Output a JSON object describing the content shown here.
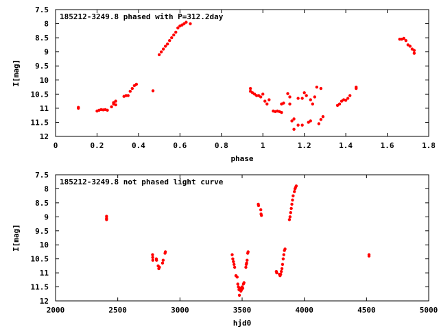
{
  "chart_data": [
    {
      "type": "scatter",
      "title": "185212-3249.8 phased with P=312.2day",
      "xlabel": "phase",
      "ylabel": "I[mag]",
      "xlim": [
        0,
        1.8
      ],
      "ylim": [
        7.5,
        12
      ],
      "y_inverted": true,
      "grid": false,
      "xticks": [
        0,
        0.2,
        0.4,
        0.6,
        0.8,
        1,
        1.2,
        1.4,
        1.6,
        1.8
      ],
      "xtick_labels": [
        "0",
        "0.2",
        "0.4",
        "0.6",
        "0.8",
        "1",
        "1.2",
        "1.4",
        "1.6",
        "1.8"
      ],
      "yticks": [
        7.5,
        8,
        8.5,
        9,
        9.5,
        10,
        10.5,
        11,
        11.5,
        12
      ],
      "ytick_labels": [
        "7.5",
        "8",
        "8.5",
        "9",
        "9.5",
        "10",
        "10.5",
        "11",
        "11.5",
        "12"
      ],
      "marker_color": "#ff0000",
      "series": [
        {
          "points": [
            [
              0.11,
              10.97
            ],
            [
              0.11,
              11.0
            ],
            [
              0.2,
              11.1
            ],
            [
              0.21,
              11.07
            ],
            [
              0.22,
              11.05
            ],
            [
              0.23,
              11.06
            ],
            [
              0.24,
              11.05
            ],
            [
              0.25,
              11.07
            ],
            [
              0.27,
              10.95
            ],
            [
              0.28,
              10.85
            ],
            [
              0.28,
              10.8
            ],
            [
              0.29,
              10.75
            ],
            [
              0.29,
              10.88
            ],
            [
              0.33,
              10.58
            ],
            [
              0.34,
              10.55
            ],
            [
              0.35,
              10.55
            ],
            [
              0.36,
              10.4
            ],
            [
              0.37,
              10.3
            ],
            [
              0.38,
              10.2
            ],
            [
              0.39,
              10.15
            ],
            [
              0.47,
              10.38
            ],
            [
              0.5,
              9.1
            ],
            [
              0.51,
              9.0
            ],
            [
              0.52,
              8.9
            ],
            [
              0.53,
              8.8
            ],
            [
              0.54,
              8.72
            ],
            [
              0.55,
              8.6
            ],
            [
              0.56,
              8.5
            ],
            [
              0.57,
              8.4
            ],
            [
              0.58,
              8.3
            ],
            [
              0.59,
              8.15
            ],
            [
              0.6,
              8.08
            ],
            [
              0.61,
              8.05
            ],
            [
              0.62,
              8.0
            ],
            [
              0.63,
              7.95
            ],
            [
              0.65,
              8.0
            ],
            [
              0.94,
              10.3
            ],
            [
              0.94,
              10.4
            ],
            [
              0.95,
              10.45
            ],
            [
              0.96,
              10.5
            ],
            [
              0.97,
              10.55
            ],
            [
              0.98,
              10.55
            ],
            [
              0.99,
              10.6
            ],
            [
              1.0,
              10.5
            ],
            [
              1.01,
              10.75
            ],
            [
              1.02,
              10.85
            ],
            [
              1.03,
              10.7
            ],
            [
              1.05,
              11.1
            ],
            [
              1.06,
              11.12
            ],
            [
              1.07,
              11.1
            ],
            [
              1.08,
              11.12
            ],
            [
              1.09,
              11.15
            ],
            [
              1.09,
              10.85
            ],
            [
              1.1,
              10.82
            ],
            [
              1.12,
              10.48
            ],
            [
              1.13,
              10.6
            ],
            [
              1.13,
              10.85
            ],
            [
              1.14,
              11.45
            ],
            [
              1.15,
              11.38
            ],
            [
              1.15,
              11.75
            ],
            [
              1.17,
              11.6
            ],
            [
              1.17,
              10.65
            ],
            [
              1.19,
              10.65
            ],
            [
              1.19,
              11.6
            ],
            [
              1.2,
              10.45
            ],
            [
              1.21,
              10.55
            ],
            [
              1.22,
              11.5
            ],
            [
              1.23,
              11.45
            ],
            [
              1.23,
              10.7
            ],
            [
              1.24,
              10.85
            ],
            [
              1.25,
              10.6
            ],
            [
              1.26,
              10.25
            ],
            [
              1.27,
              11.55
            ],
            [
              1.28,
              11.4
            ],
            [
              1.28,
              10.3
            ],
            [
              1.29,
              11.3
            ],
            [
              1.36,
              10.9
            ],
            [
              1.37,
              10.85
            ],
            [
              1.38,
              10.75
            ],
            [
              1.39,
              10.7
            ],
            [
              1.4,
              10.72
            ],
            [
              1.41,
              10.65
            ],
            [
              1.42,
              10.55
            ],
            [
              1.45,
              10.25
            ],
            [
              1.45,
              10.3
            ],
            [
              1.66,
              8.55
            ],
            [
              1.67,
              8.55
            ],
            [
              1.68,
              8.52
            ],
            [
              1.69,
              8.6
            ],
            [
              1.7,
              8.75
            ],
            [
              1.71,
              8.8
            ],
            [
              1.72,
              8.9
            ],
            [
              1.73,
              8.95
            ],
            [
              1.73,
              9.05
            ]
          ]
        }
      ]
    },
    {
      "type": "scatter",
      "title": "185212-3249.8 not phased light curve",
      "xlabel": "hjd0",
      "ylabel": "I[mag]",
      "xlim": [
        2000,
        5000
      ],
      "ylim": [
        7.5,
        12
      ],
      "y_inverted": true,
      "grid": false,
      "xticks": [
        2000,
        2500,
        3000,
        3500,
        4000,
        4500,
        5000
      ],
      "xtick_labels": [
        "2000",
        "2500",
        "3000",
        "3500",
        "4000",
        "4500",
        "5000"
      ],
      "yticks": [
        7.5,
        8,
        8.5,
        9,
        9.5,
        10,
        10.5,
        11,
        11.5,
        12
      ],
      "ytick_labels": [
        "7.5",
        "8",
        "8.5",
        "9",
        "9.5",
        "10",
        "10.5",
        "11",
        "11.5",
        "12"
      ],
      "marker_color": "#ff0000",
      "series": [
        {
          "points": [
            [
              2410,
              8.98
            ],
            [
              2410,
              9.05
            ],
            [
              2410,
              9.1
            ],
            [
              2780,
              10.35
            ],
            [
              2781,
              10.45
            ],
            [
              2782,
              10.55
            ],
            [
              2810,
              10.5
            ],
            [
              2812,
              10.55
            ],
            [
              2825,
              10.75
            ],
            [
              2830,
              10.85
            ],
            [
              2835,
              10.8
            ],
            [
              2860,
              10.65
            ],
            [
              2865,
              10.55
            ],
            [
              2880,
              10.3
            ],
            [
              2883,
              10.25
            ],
            [
              3420,
              10.35
            ],
            [
              3425,
              10.5
            ],
            [
              3430,
              10.6
            ],
            [
              3435,
              10.7
            ],
            [
              3440,
              10.8
            ],
            [
              3450,
              11.1
            ],
            [
              3460,
              11.15
            ],
            [
              3465,
              11.4
            ],
            [
              3470,
              11.5
            ],
            [
              3475,
              11.6
            ],
            [
              3478,
              11.8
            ],
            [
              3485,
              11.55
            ],
            [
              3490,
              11.65
            ],
            [
              3495,
              11.6
            ],
            [
              3500,
              11.5
            ],
            [
              3505,
              11.55
            ],
            [
              3510,
              11.4
            ],
            [
              3515,
              11.35
            ],
            [
              3530,
              10.8
            ],
            [
              3533,
              10.7
            ],
            [
              3536,
              10.65
            ],
            [
              3540,
              10.55
            ],
            [
              3545,
              10.3
            ],
            [
              3548,
              10.25
            ],
            [
              3630,
              8.55
            ],
            [
              3632,
              8.6
            ],
            [
              3650,
              8.75
            ],
            [
              3652,
              8.9
            ],
            [
              3655,
              8.95
            ],
            [
              3775,
              10.95
            ],
            [
              3778,
              11.0
            ],
            [
              3800,
              11.05
            ],
            [
              3805,
              11.1
            ],
            [
              3810,
              11.05
            ],
            [
              3815,
              10.95
            ],
            [
              3820,
              10.85
            ],
            [
              3825,
              10.7
            ],
            [
              3830,
              10.5
            ],
            [
              3835,
              10.35
            ],
            [
              3840,
              10.2
            ],
            [
              3845,
              10.15
            ],
            [
              3880,
              9.1
            ],
            [
              3885,
              9.0
            ],
            [
              3890,
              8.85
            ],
            [
              3895,
              8.7
            ],
            [
              3900,
              8.55
            ],
            [
              3905,
              8.4
            ],
            [
              3910,
              8.25
            ],
            [
              3920,
              8.1
            ],
            [
              3925,
              8.0
            ],
            [
              3930,
              7.95
            ],
            [
              3935,
              7.9
            ],
            [
              4520,
              10.35
            ],
            [
              4520,
              10.4
            ]
          ]
        }
      ]
    }
  ]
}
